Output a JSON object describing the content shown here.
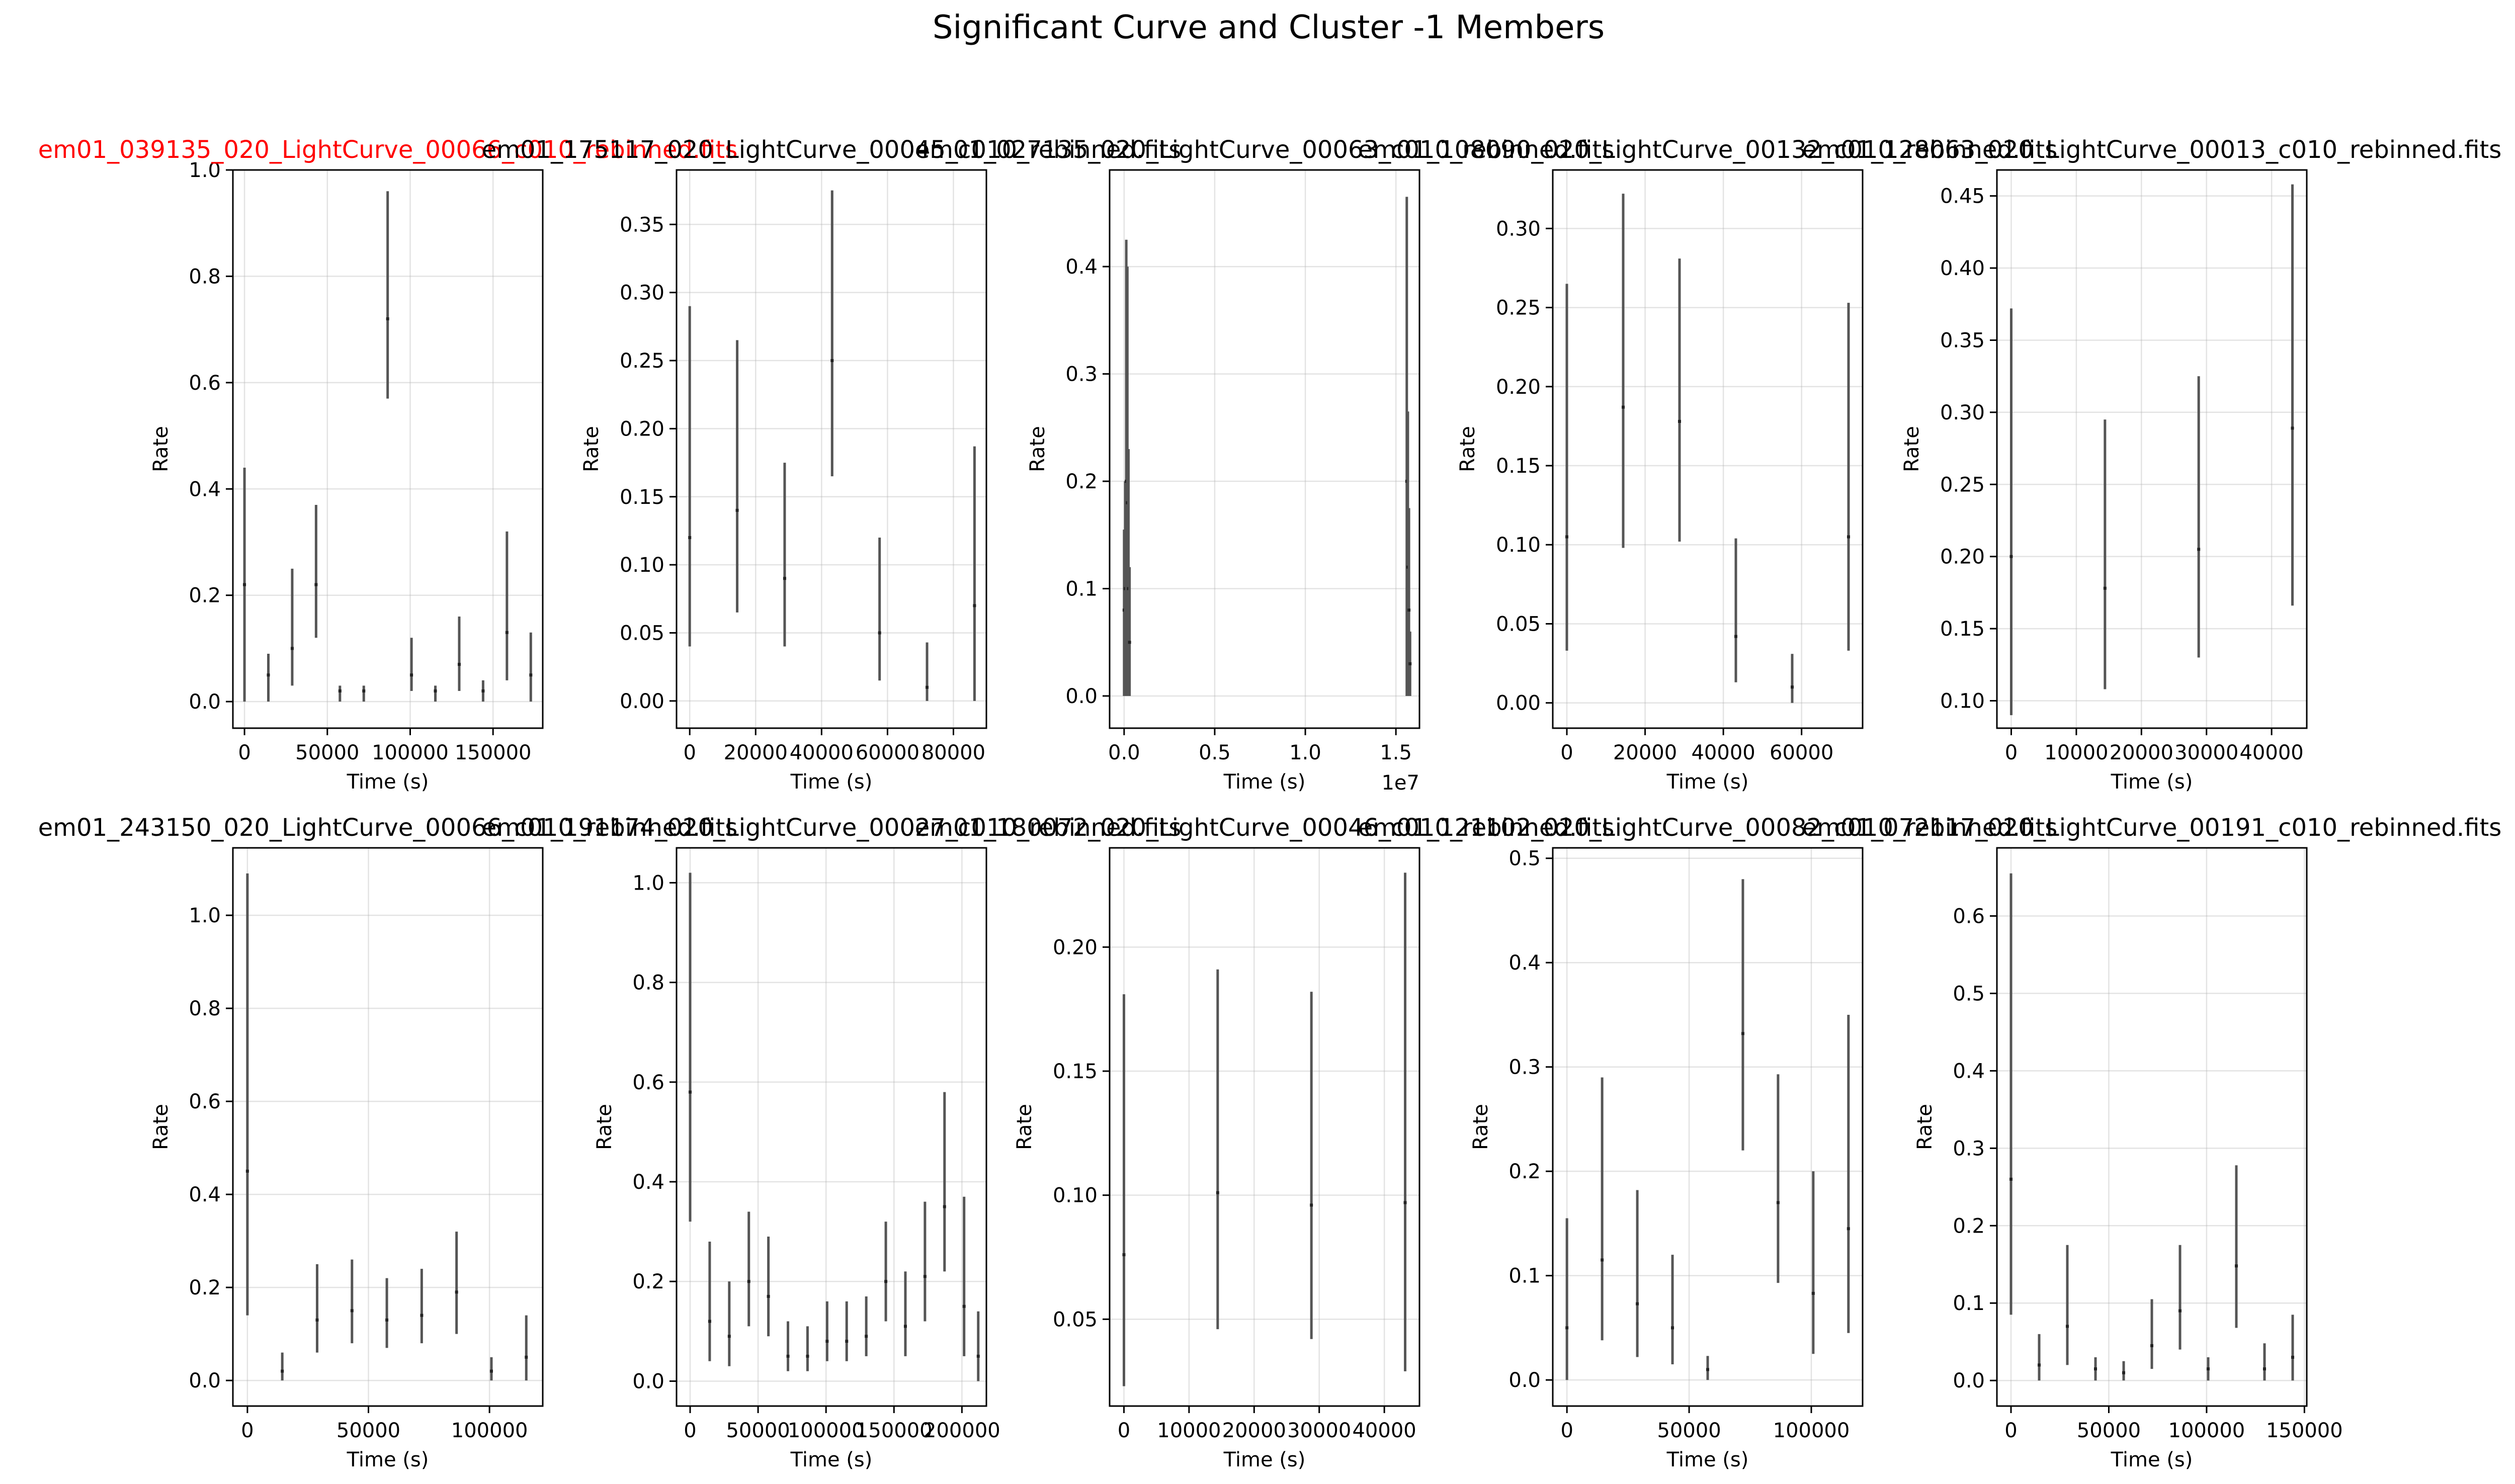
{
  "figure": {
    "suptitle": "Significant Curve and Cluster -1 Members"
  },
  "chart_data": [
    {
      "type": "scatter",
      "title": "em01_039135_020_LightCurve_00066_c010_rebinned.fits",
      "title_color": "#ff0000",
      "xlabel": "Time (s)",
      "ylabel": "Rate",
      "xlim": [
        -7000,
        180000
      ],
      "ylim": [
        -0.05,
        1.0
      ],
      "xticks": [
        0,
        50000,
        100000,
        150000
      ],
      "xtick_labels": [
        "0",
        "50000",
        "100000",
        "150000"
      ],
      "yticks": [
        0.0,
        0.2,
        0.4,
        0.6,
        0.8,
        1.0
      ],
      "ytick_labels": [
        "0.0",
        "0.2",
        "0.4",
        "0.6",
        "0.8",
        "1.0"
      ],
      "grid": true,
      "points": [
        {
          "x": 0,
          "y": 0.22,
          "lo": 0.0,
          "hi": 0.44
        },
        {
          "x": 14400,
          "y": 0.05,
          "lo": 0.0,
          "hi": 0.09
        },
        {
          "x": 28800,
          "y": 0.1,
          "lo": 0.03,
          "hi": 0.25
        },
        {
          "x": 43200,
          "y": 0.22,
          "lo": 0.12,
          "hi": 0.37
        },
        {
          "x": 57600,
          "y": 0.02,
          "lo": 0.0,
          "hi": 0.03
        },
        {
          "x": 72000,
          "y": 0.02,
          "lo": 0.0,
          "hi": 0.03
        },
        {
          "x": 86400,
          "y": 0.72,
          "lo": 0.57,
          "hi": 0.96
        },
        {
          "x": 100800,
          "y": 0.05,
          "lo": 0.02,
          "hi": 0.12
        },
        {
          "x": 115200,
          "y": 0.02,
          "lo": 0.0,
          "hi": 0.03
        },
        {
          "x": 129600,
          "y": 0.07,
          "lo": 0.02,
          "hi": 0.16
        },
        {
          "x": 144000,
          "y": 0.02,
          "lo": 0.0,
          "hi": 0.04
        },
        {
          "x": 158400,
          "y": 0.13,
          "lo": 0.04,
          "hi": 0.32
        },
        {
          "x": 172800,
          "y": 0.05,
          "lo": 0.0,
          "hi": 0.13
        }
      ]
    },
    {
      "type": "scatter",
      "title": "em01_175117_020_LightCurve_00045_c010_rebinned.fits",
      "title_color": "#000000",
      "xlabel": "Time (s)",
      "ylabel": "Rate",
      "xlim": [
        -4000,
        90000
      ],
      "ylim": [
        -0.02,
        0.39
      ],
      "xticks": [
        0,
        20000,
        40000,
        60000,
        80000
      ],
      "xtick_labels": [
        "0",
        "20000",
        "40000",
        "60000",
        "80000"
      ],
      "yticks": [
        0.0,
        0.05,
        0.1,
        0.15,
        0.2,
        0.25,
        0.3,
        0.35
      ],
      "ytick_labels": [
        "0.00",
        "0.05",
        "0.10",
        "0.15",
        "0.20",
        "0.25",
        "0.30",
        "0.35"
      ],
      "grid": true,
      "points": [
        {
          "x": 0,
          "y": 0.12,
          "lo": 0.04,
          "hi": 0.29
        },
        {
          "x": 14400,
          "y": 0.14,
          "lo": 0.065,
          "hi": 0.265
        },
        {
          "x": 28800,
          "y": 0.09,
          "lo": 0.04,
          "hi": 0.175
        },
        {
          "x": 43200,
          "y": 0.25,
          "lo": 0.165,
          "hi": 0.375
        },
        {
          "x": 57600,
          "y": 0.05,
          "lo": 0.015,
          "hi": 0.12
        },
        {
          "x": 72000,
          "y": 0.01,
          "lo": 0.0,
          "hi": 0.043
        },
        {
          "x": 86400,
          "y": 0.07,
          "lo": 0.0,
          "hi": 0.187
        }
      ]
    },
    {
      "type": "scatter",
      "title": "em01_027135_020_LightCurve_00063_c010_rebinned.fits",
      "title_color": "#000000",
      "xlabel": "Time (s)",
      "ylabel": "Rate",
      "x_offset_label": "1e7",
      "xlim": [
        -0.08,
        1.63
      ],
      "ylim": [
        -0.03,
        0.49
      ],
      "xticks": [
        0.0,
        0.5,
        1.0,
        1.5
      ],
      "xtick_labels": [
        "0.0",
        "0.5",
        "1.0",
        "1.5"
      ],
      "yticks": [
        0.0,
        0.1,
        0.2,
        0.3,
        0.4
      ],
      "ytick_labels": [
        "0.0",
        "0.1",
        "0.2",
        "0.3",
        "0.4"
      ],
      "grid": true,
      "points": [
        {
          "x": 0.0,
          "y": 0.08,
          "lo": 0.0,
          "hi": 0.155
        },
        {
          "x": 0.006,
          "y": 0.1,
          "lo": 0.0,
          "hi": 0.2
        },
        {
          "x": 0.012,
          "y": 0.2,
          "lo": 0.0,
          "hi": 0.425
        },
        {
          "x": 0.018,
          "y": 0.18,
          "lo": 0.0,
          "hi": 0.4
        },
        {
          "x": 0.024,
          "y": 0.1,
          "lo": 0.0,
          "hi": 0.23
        },
        {
          "x": 0.03,
          "y": 0.05,
          "lo": 0.0,
          "hi": 0.12
        },
        {
          "x": 1.56,
          "y": 0.2,
          "lo": 0.0,
          "hi": 0.465
        },
        {
          "x": 1.566,
          "y": 0.12,
          "lo": 0.0,
          "hi": 0.265
        },
        {
          "x": 1.572,
          "y": 0.08,
          "lo": 0.0,
          "hi": 0.175
        },
        {
          "x": 1.578,
          "y": 0.03,
          "lo": 0.0,
          "hi": 0.06
        }
      ]
    },
    {
      "type": "scatter",
      "title": "em01_108090_020_LightCurve_00132_c010_rebinned.fits",
      "title_color": "#000000",
      "xlabel": "Time (s)",
      "ylabel": "Rate",
      "xlim": [
        -3600,
        75600
      ],
      "ylim": [
        -0.016,
        0.337
      ],
      "xticks": [
        0,
        20000,
        40000,
        60000
      ],
      "xtick_labels": [
        "0",
        "20000",
        "40000",
        "60000"
      ],
      "yticks": [
        0.0,
        0.05,
        0.1,
        0.15,
        0.2,
        0.25,
        0.3
      ],
      "ytick_labels": [
        "0.00",
        "0.05",
        "0.10",
        "0.15",
        "0.20",
        "0.25",
        "0.30"
      ],
      "grid": true,
      "points": [
        {
          "x": 0,
          "y": 0.105,
          "lo": 0.033,
          "hi": 0.265
        },
        {
          "x": 14400,
          "y": 0.187,
          "lo": 0.098,
          "hi": 0.322
        },
        {
          "x": 28800,
          "y": 0.178,
          "lo": 0.102,
          "hi": 0.281
        },
        {
          "x": 43200,
          "y": 0.042,
          "lo": 0.013,
          "hi": 0.104
        },
        {
          "x": 57600,
          "y": 0.01,
          "lo": 0.0,
          "hi": 0.031
        },
        {
          "x": 72000,
          "y": 0.105,
          "lo": 0.033,
          "hi": 0.253
        }
      ]
    },
    {
      "type": "scatter",
      "title": "em01_128063_020_LightCurve_00013_c010_rebinned.fits",
      "title_color": "#000000",
      "xlabel": "Time (s)",
      "ylabel": "Rate",
      "xlim": [
        -2200,
        45400
      ],
      "ylim": [
        0.081,
        0.468
      ],
      "xticks": [
        0,
        10000,
        20000,
        30000,
        40000
      ],
      "xtick_labels": [
        "0",
        "10000",
        "20000",
        "30000",
        "40000"
      ],
      "yticks": [
        0.1,
        0.15,
        0.2,
        0.25,
        0.3,
        0.35,
        0.4,
        0.45
      ],
      "ytick_labels": [
        "0.10",
        "0.15",
        "0.20",
        "0.25",
        "0.30",
        "0.35",
        "0.40",
        "0.45"
      ],
      "grid": true,
      "points": [
        {
          "x": 0,
          "y": 0.2,
          "lo": 0.09,
          "hi": 0.372
        },
        {
          "x": 14400,
          "y": 0.178,
          "lo": 0.108,
          "hi": 0.295
        },
        {
          "x": 28800,
          "y": 0.205,
          "lo": 0.13,
          "hi": 0.325
        },
        {
          "x": 43200,
          "y": 0.289,
          "lo": 0.166,
          "hi": 0.458
        }
      ]
    },
    {
      "type": "scatter",
      "title": "em01_243150_020_LightCurve_00066_c010_rebinned.fits",
      "title_color": "#000000",
      "xlabel": "Time (s)",
      "ylabel": "Rate",
      "xlim": [
        -6000,
        122000
      ],
      "ylim": [
        -0.055,
        1.145
      ],
      "xticks": [
        0,
        50000,
        100000
      ],
      "xtick_labels": [
        "0",
        "50000",
        "100000"
      ],
      "yticks": [
        0.0,
        0.2,
        0.4,
        0.6,
        0.8,
        1.0
      ],
      "ytick_labels": [
        "0.0",
        "0.2",
        "0.4",
        "0.6",
        "0.8",
        "1.0"
      ],
      "grid": true,
      "points": [
        {
          "x": 0,
          "y": 0.45,
          "lo": 0.14,
          "hi": 1.09
        },
        {
          "x": 14400,
          "y": 0.02,
          "lo": 0.0,
          "hi": 0.06
        },
        {
          "x": 28800,
          "y": 0.13,
          "lo": 0.06,
          "hi": 0.25
        },
        {
          "x": 43200,
          "y": 0.15,
          "lo": 0.08,
          "hi": 0.26
        },
        {
          "x": 57600,
          "y": 0.13,
          "lo": 0.07,
          "hi": 0.22
        },
        {
          "x": 72000,
          "y": 0.14,
          "lo": 0.08,
          "hi": 0.24
        },
        {
          "x": 86400,
          "y": 0.19,
          "lo": 0.1,
          "hi": 0.32
        },
        {
          "x": 100800,
          "y": 0.02,
          "lo": 0.0,
          "hi": 0.05
        },
        {
          "x": 115200,
          "y": 0.05,
          "lo": 0.0,
          "hi": 0.14
        }
      ]
    },
    {
      "type": "scatter",
      "title": "em01_191174_020_LightCurve_00027_c010_rebinned.fits",
      "title_color": "#000000",
      "xlabel": "Time (s)",
      "ylabel": "Rate",
      "xlim": [
        -10000,
        218000
      ],
      "ylim": [
        -0.05,
        1.07
      ],
      "xticks": [
        0,
        50000,
        100000,
        150000,
        200000
      ],
      "xtick_labels": [
        "0",
        "50000",
        "100000",
        "150000",
        "200000"
      ],
      "yticks": [
        0.0,
        0.2,
        0.4,
        0.6,
        0.8,
        1.0
      ],
      "ytick_labels": [
        "0.0",
        "0.2",
        "0.4",
        "0.6",
        "0.8",
        "1.0"
      ],
      "grid": true,
      "points": [
        {
          "x": 0,
          "y": 0.58,
          "lo": 0.32,
          "hi": 1.02
        },
        {
          "x": 14400,
          "y": 0.12,
          "lo": 0.04,
          "hi": 0.28
        },
        {
          "x": 28800,
          "y": 0.09,
          "lo": 0.03,
          "hi": 0.2
        },
        {
          "x": 43200,
          "y": 0.2,
          "lo": 0.11,
          "hi": 0.34
        },
        {
          "x": 57600,
          "y": 0.17,
          "lo": 0.09,
          "hi": 0.29
        },
        {
          "x": 72000,
          "y": 0.05,
          "lo": 0.02,
          "hi": 0.12
        },
        {
          "x": 86400,
          "y": 0.05,
          "lo": 0.02,
          "hi": 0.11
        },
        {
          "x": 100800,
          "y": 0.08,
          "lo": 0.04,
          "hi": 0.16
        },
        {
          "x": 115200,
          "y": 0.08,
          "lo": 0.04,
          "hi": 0.16
        },
        {
          "x": 129600,
          "y": 0.09,
          "lo": 0.05,
          "hi": 0.17
        },
        {
          "x": 144000,
          "y": 0.2,
          "lo": 0.12,
          "hi": 0.32
        },
        {
          "x": 158400,
          "y": 0.11,
          "lo": 0.05,
          "hi": 0.22
        },
        {
          "x": 172800,
          "y": 0.21,
          "lo": 0.12,
          "hi": 0.36
        },
        {
          "x": 187200,
          "y": 0.35,
          "lo": 0.22,
          "hi": 0.58
        },
        {
          "x": 201600,
          "y": 0.15,
          "lo": 0.05,
          "hi": 0.37
        },
        {
          "x": 212000,
          "y": 0.05,
          "lo": 0.0,
          "hi": 0.14
        }
      ]
    },
    {
      "type": "scatter",
      "title": "em01_180072_020_LightCurve_00046_c010_rebinned.fits",
      "title_color": "#000000",
      "xlabel": "Time (s)",
      "ylabel": "Rate",
      "xlim": [
        -2200,
        45400
      ],
      "ylim": [
        0.015,
        0.24
      ],
      "xticks": [
        0,
        10000,
        20000,
        30000,
        40000
      ],
      "xtick_labels": [
        "0",
        "10000",
        "20000",
        "30000",
        "40000"
      ],
      "yticks": [
        0.05,
        0.1,
        0.15,
        0.2
      ],
      "ytick_labels": [
        "0.05",
        "0.10",
        "0.15",
        "0.20"
      ],
      "grid": true,
      "points": [
        {
          "x": 0,
          "y": 0.076,
          "lo": 0.023,
          "hi": 0.181
        },
        {
          "x": 14400,
          "y": 0.101,
          "lo": 0.046,
          "hi": 0.191
        },
        {
          "x": 28800,
          "y": 0.096,
          "lo": 0.042,
          "hi": 0.182
        },
        {
          "x": 43200,
          "y": 0.097,
          "lo": 0.029,
          "hi": 0.23
        }
      ]
    },
    {
      "type": "scatter",
      "title": "em01_121102_020_LightCurve_00082_c010_rebinned.fits",
      "title_color": "#000000",
      "xlabel": "Time (s)",
      "ylabel": "Rate",
      "xlim": [
        -5800,
        121000
      ],
      "ylim": [
        -0.025,
        0.51
      ],
      "xticks": [
        0,
        50000,
        100000
      ],
      "xtick_labels": [
        "0",
        "50000",
        "100000"
      ],
      "yticks": [
        0.0,
        0.1,
        0.2,
        0.3,
        0.4,
        0.5
      ],
      "ytick_labels": [
        "0.0",
        "0.1",
        "0.2",
        "0.3",
        "0.4",
        "0.5"
      ],
      "grid": true,
      "points": [
        {
          "x": 0,
          "y": 0.05,
          "lo": 0.0,
          "hi": 0.155
        },
        {
          "x": 14400,
          "y": 0.115,
          "lo": 0.038,
          "hi": 0.29
        },
        {
          "x": 28800,
          "y": 0.073,
          "lo": 0.022,
          "hi": 0.182
        },
        {
          "x": 43200,
          "y": 0.05,
          "lo": 0.015,
          "hi": 0.12
        },
        {
          "x": 57600,
          "y": 0.01,
          "lo": 0.0,
          "hi": 0.023
        },
        {
          "x": 72000,
          "y": 0.332,
          "lo": 0.22,
          "hi": 0.48
        },
        {
          "x": 86400,
          "y": 0.17,
          "lo": 0.093,
          "hi": 0.293
        },
        {
          "x": 100800,
          "y": 0.083,
          "lo": 0.025,
          "hi": 0.2
        },
        {
          "x": 115200,
          "y": 0.145,
          "lo": 0.045,
          "hi": 0.35
        }
      ]
    },
    {
      "type": "scatter",
      "title": "em01_072117_020_LightCurve_00191_c010_rebinned.fits",
      "title_color": "#000000",
      "xlabel": "Time (s)",
      "ylabel": "Rate",
      "xlim": [
        -7200,
        151200
      ],
      "ylim": [
        -0.033,
        0.688
      ],
      "xticks": [
        0,
        50000,
        100000,
        150000
      ],
      "xtick_labels": [
        "0",
        "50000",
        "100000",
        "150000"
      ],
      "yticks": [
        0.0,
        0.1,
        0.2,
        0.3,
        0.4,
        0.5,
        0.6
      ],
      "ytick_labels": [
        "0.0",
        "0.1",
        "0.2",
        "0.3",
        "0.4",
        "0.5",
        "0.6"
      ],
      "grid": true,
      "points": [
        {
          "x": 0,
          "y": 0.26,
          "lo": 0.085,
          "hi": 0.655
        },
        {
          "x": 14400,
          "y": 0.02,
          "lo": 0.0,
          "hi": 0.06
        },
        {
          "x": 28800,
          "y": 0.07,
          "lo": 0.02,
          "hi": 0.175
        },
        {
          "x": 43200,
          "y": 0.015,
          "lo": 0.0,
          "hi": 0.03
        },
        {
          "x": 57600,
          "y": 0.01,
          "lo": 0.0,
          "hi": 0.025
        },
        {
          "x": 72000,
          "y": 0.045,
          "lo": 0.015,
          "hi": 0.105
        },
        {
          "x": 86400,
          "y": 0.09,
          "lo": 0.04,
          "hi": 0.175
        },
        {
          "x": 100800,
          "y": 0.015,
          "lo": 0.0,
          "hi": 0.03
        },
        {
          "x": 115200,
          "y": 0.148,
          "lo": 0.068,
          "hi": 0.278
        },
        {
          "x": 129600,
          "y": 0.015,
          "lo": 0.0,
          "hi": 0.048
        },
        {
          "x": 144000,
          "y": 0.03,
          "lo": 0.0,
          "hi": 0.085
        }
      ]
    }
  ]
}
